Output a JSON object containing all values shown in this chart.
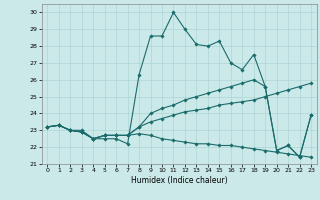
{
  "title": "",
  "xlabel": "Humidex (Indice chaleur)",
  "xlim": [
    -0.5,
    23.5
  ],
  "ylim": [
    21,
    30.5
  ],
  "yticks": [
    21,
    22,
    23,
    24,
    25,
    26,
    27,
    28,
    29,
    30
  ],
  "xticks": [
    0,
    1,
    2,
    3,
    4,
    5,
    6,
    7,
    8,
    9,
    10,
    11,
    12,
    13,
    14,
    15,
    16,
    17,
    18,
    19,
    20,
    21,
    22,
    23
  ],
  "background_color": "#cce9e9",
  "line_color": "#1a6b6b",
  "grid_color": "#afd4d4",
  "series": [
    [
      23.2,
      23.3,
      23.0,
      23.0,
      22.5,
      22.5,
      22.5,
      22.2,
      26.3,
      28.6,
      28.6,
      30.0,
      29.0,
      28.1,
      28.0,
      28.3,
      27.0,
      26.6,
      27.5,
      25.6,
      21.8,
      22.1,
      21.4,
      23.9
    ],
    [
      23.2,
      23.3,
      23.0,
      22.9,
      22.5,
      22.7,
      22.7,
      22.7,
      23.2,
      24.0,
      24.3,
      24.5,
      24.8,
      25.0,
      25.2,
      25.4,
      25.6,
      25.8,
      26.0,
      25.6,
      21.8,
      22.1,
      21.4,
      23.9
    ],
    [
      23.2,
      23.3,
      23.0,
      22.9,
      22.5,
      22.7,
      22.7,
      22.7,
      23.2,
      23.5,
      23.7,
      23.9,
      24.1,
      24.2,
      24.3,
      24.5,
      24.6,
      24.7,
      24.8,
      25.0,
      25.2,
      25.4,
      25.6,
      25.8
    ],
    [
      23.2,
      23.3,
      23.0,
      22.9,
      22.5,
      22.7,
      22.7,
      22.7,
      22.8,
      22.7,
      22.5,
      22.4,
      22.3,
      22.2,
      22.2,
      22.1,
      22.1,
      22.0,
      21.9,
      21.8,
      21.7,
      21.6,
      21.5,
      21.4
    ]
  ]
}
